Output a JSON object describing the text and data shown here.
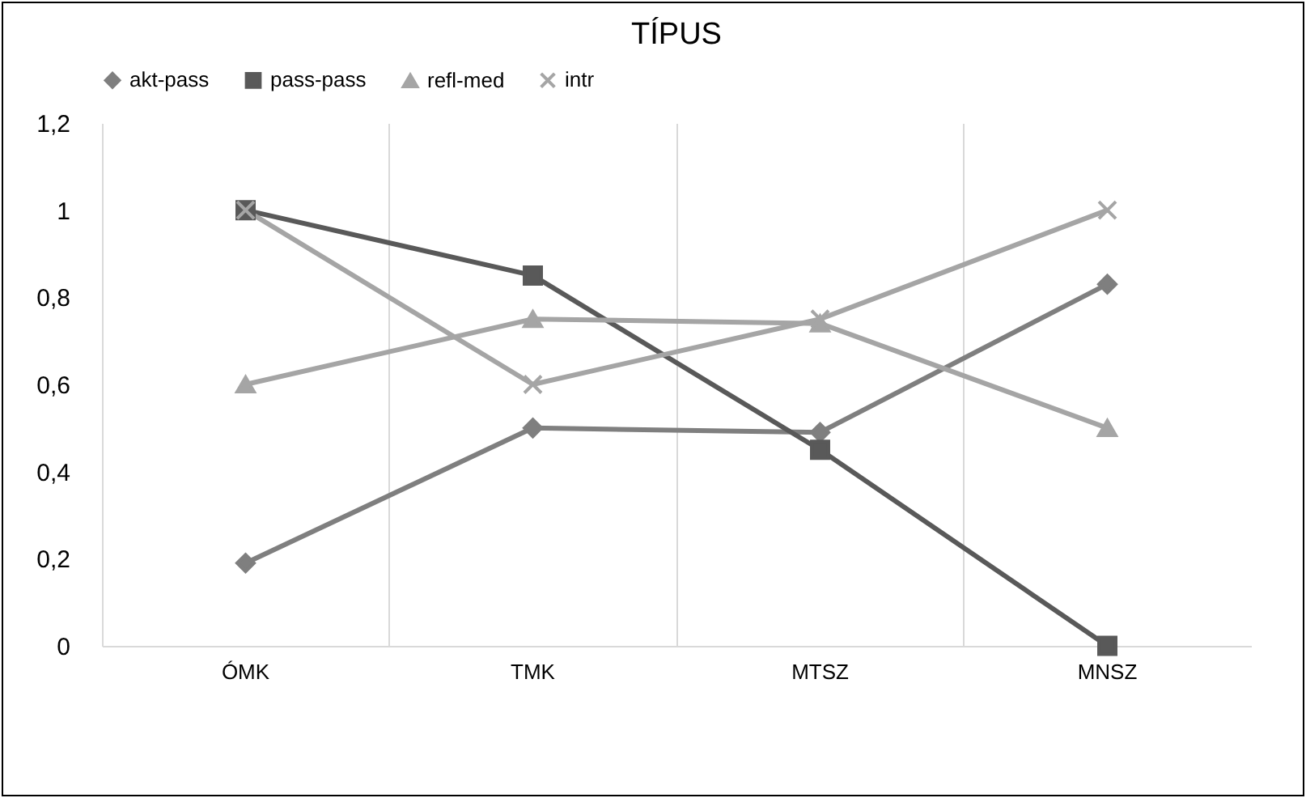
{
  "chart_data": {
    "type": "line",
    "title": "TÍPUS",
    "categories": [
      "ÓMK",
      "TMK",
      "MTSZ",
      "MNSZ"
    ],
    "series": [
      {
        "name": "akt-pass",
        "color": "#7f7f7f",
        "marker": "diamond",
        "values": [
          0.19,
          0.5,
          0.49,
          0.83
        ]
      },
      {
        "name": "pass-pass",
        "color": "#595959",
        "marker": "square",
        "values": [
          1,
          0.85,
          0.45,
          0
        ]
      },
      {
        "name": "refl-med",
        "color": "#a5a5a5",
        "marker": "triangle",
        "values": [
          0.6,
          0.75,
          0.74,
          0.5
        ]
      },
      {
        "name": "intr",
        "color": "#a5a5a5",
        "marker": "cross",
        "values": [
          1,
          0.6,
          0.75,
          1
        ]
      }
    ],
    "ylim": [
      0,
      1.2
    ],
    "yticks": [
      0,
      {
        "value": 0.2,
        "label": "0,2"
      },
      {
        "value": 0.4,
        "label": "0,4"
      },
      {
        "value": 0.6,
        "label": "0,6"
      },
      {
        "value": 0.8,
        "label": "0,8"
      },
      1,
      {
        "value": 1.2,
        "label": "1,2"
      }
    ],
    "grid": "x",
    "legend": "top"
  }
}
